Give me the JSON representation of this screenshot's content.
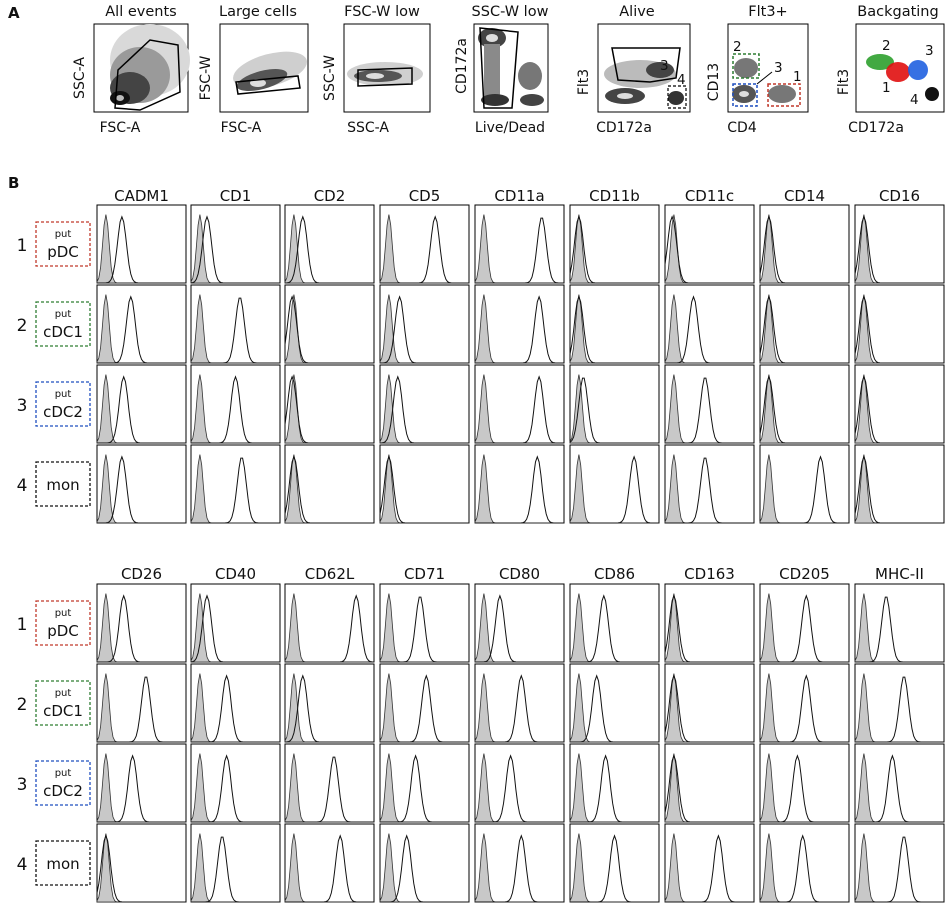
{
  "panel_labels": {
    "a": "A",
    "b": "B"
  },
  "gating": {
    "plots": [
      {
        "title": "All events",
        "xlabel": "FSC-A",
        "ylabel": "SSC-A"
      },
      {
        "title": "Large cells",
        "xlabel": "FSC-A",
        "ylabel": "FSC-W"
      },
      {
        "title": "FSC-W low",
        "xlabel": "SSC-A",
        "ylabel": "SSC-W"
      },
      {
        "title": "SSC-W low",
        "xlabel": "Live/Dead",
        "ylabel": "CD172a"
      },
      {
        "title": "Alive",
        "xlabel": "CD172a",
        "ylabel": "Flt3"
      },
      {
        "title": "Flt3+",
        "xlabel": "CD4",
        "ylabel": "CD13"
      },
      {
        "title": "Backgating",
        "xlabel": "CD172a",
        "ylabel": "Flt3"
      }
    ],
    "alive_gate_labels": [
      "3",
      "4"
    ],
    "flt3_gate_labels": [
      "2",
      "3",
      "1"
    ],
    "backgating_labels": [
      "2",
      "3",
      "1",
      "4"
    ]
  },
  "populations": [
    {
      "number": "1",
      "superscript": "put",
      "name": "pDC",
      "color": "#c0392b"
    },
    {
      "number": "2",
      "superscript": "put",
      "name": "cDC1",
      "color": "#2e7d32"
    },
    {
      "number": "3",
      "superscript": "put",
      "name": "cDC2",
      "color": "#1f4fbf"
    },
    {
      "number": "4",
      "superscript": "",
      "name": "mon",
      "color": "#111111"
    }
  ],
  "backgating_colors": {
    "1": "#e01010",
    "2": "#2ea02e",
    "3": "#2060e0",
    "4": "#111111"
  },
  "chart_data": [
    {
      "type": "histogram-grid",
      "note_series": "filled grey histogram = control, line = marker staining; values are peak positions on a 0-1 relative fluorescence scale",
      "markers": [
        "CADM1",
        "CD1",
        "CD2",
        "CD5",
        "CD11a",
        "CD11b",
        "CD11c",
        "CD14",
        "CD16"
      ],
      "rows": [
        "pDC",
        "cDC1",
        "cDC2",
        "mon"
      ],
      "peak_positions": [
        [
          0.28,
          0.18,
          0.2,
          0.62,
          0.75,
          0.1,
          0.08,
          0.1,
          0.1
        ],
        [
          0.38,
          0.55,
          0.08,
          0.22,
          0.72,
          0.1,
          0.32,
          0.1,
          0.1
        ],
        [
          0.3,
          0.5,
          0.08,
          0.2,
          0.72,
          0.15,
          0.45,
          0.1,
          0.1
        ],
        [
          0.28,
          0.57,
          0.1,
          0.1,
          0.7,
          0.72,
          0.45,
          0.68,
          0.1
        ]
      ]
    },
    {
      "type": "histogram-grid",
      "markers": [
        "CD26",
        "CD40",
        "CD62L",
        "CD71",
        "CD80",
        "CD86",
        "CD163",
        "CD205",
        "MHC-II"
      ],
      "rows": [
        "pDC",
        "cDC1",
        "cDC2",
        "mon"
      ],
      "peak_positions": [
        [
          0.3,
          0.18,
          0.8,
          0.45,
          0.28,
          0.38,
          0.1,
          0.52,
          0.35
        ],
        [
          0.55,
          0.4,
          0.2,
          0.52,
          0.52,
          0.3,
          0.1,
          0.52,
          0.55
        ],
        [
          0.4,
          0.4,
          0.55,
          0.4,
          0.4,
          0.4,
          0.1,
          0.42,
          0.42
        ],
        [
          0.1,
          0.35,
          0.62,
          0.3,
          0.52,
          0.5,
          0.6,
          0.48,
          0.55
        ]
      ]
    }
  ]
}
